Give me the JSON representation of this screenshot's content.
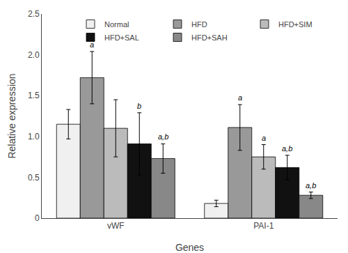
{
  "chart_data": {
    "type": "bar",
    "xlabel": "Genes",
    "ylabel": "Relative expression",
    "categories": [
      "vWF",
      "PAI-1"
    ],
    "series": [
      {
        "name": "Normal",
        "color": "#f0f0f0",
        "values": [
          1.15,
          0.18
        ],
        "errors": [
          0.18,
          0.04
        ]
      },
      {
        "name": "HFD",
        "color": "#999999",
        "values": [
          1.72,
          1.11
        ],
        "errors": [
          0.32,
          0.28
        ]
      },
      {
        "name": "HFD+SIM",
        "color": "#bbbbbb",
        "values": [
          1.1,
          0.75
        ],
        "errors": [
          0.35,
          0.15
        ]
      },
      {
        "name": "HFD+SAL",
        "color": "#111111",
        "values": [
          0.91,
          0.62
        ],
        "errors": [
          0.38,
          0.15
        ]
      },
      {
        "name": "HFD+SAH",
        "color": "#888888",
        "values": [
          0.73,
          0.28
        ],
        "errors": [
          0.18,
          0.04
        ]
      }
    ],
    "annotations": [
      {
        "category": "vWF",
        "series": "HFD",
        "text": "a"
      },
      {
        "category": "vWF",
        "series": "HFD+SAL",
        "text": "b"
      },
      {
        "category": "vWF",
        "series": "HFD+SAH",
        "text": "a,b"
      },
      {
        "category": "PAI-1",
        "series": "HFD",
        "text": "a"
      },
      {
        "category": "PAI-1",
        "series": "HFD+SIM",
        "text": "a"
      },
      {
        "category": "PAI-1",
        "series": "HFD+SAL",
        "text": "a,b"
      },
      {
        "category": "PAI-1",
        "series": "HFD+SAH",
        "text": "a,b"
      }
    ],
    "ylim": [
      0,
      2.5
    ],
    "yticks": [
      0,
      0.5,
      {
        "value": 1,
        "label": "1.0"
      },
      1.5,
      {
        "value": 2,
        "label": "2.0"
      },
      2.5
    ],
    "grid": false,
    "legend": "upper right"
  }
}
